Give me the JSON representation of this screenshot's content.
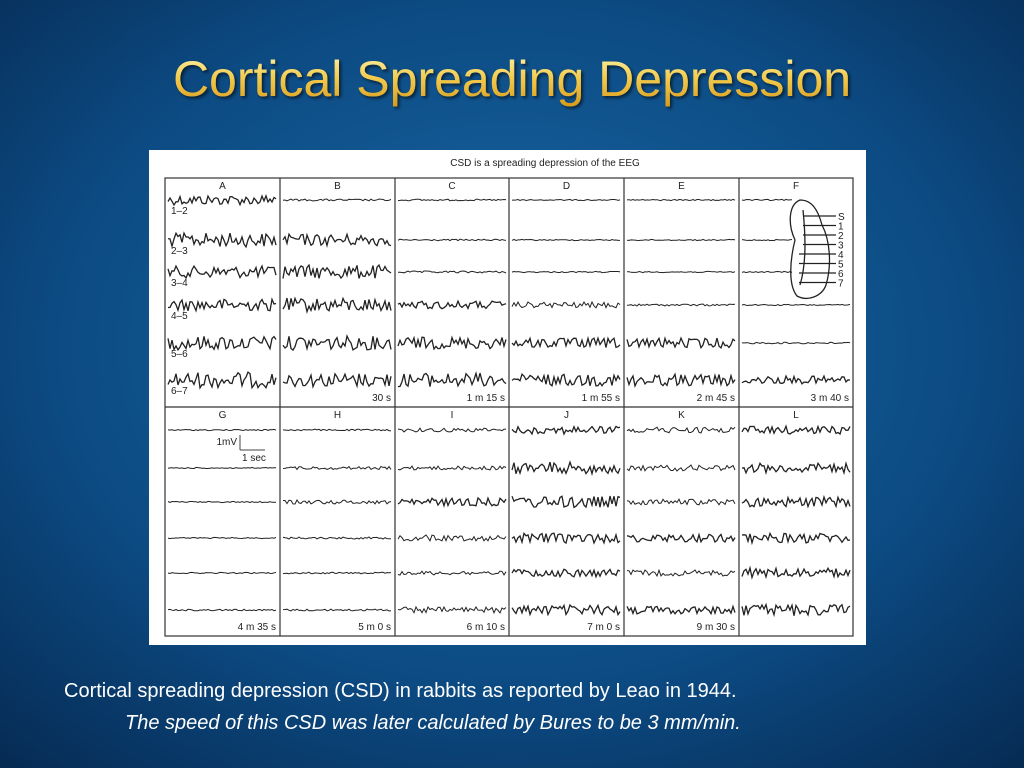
{
  "title": "Cortical Spreading Depression",
  "figure": {
    "title": "CSD is a spreading depression of the EEG",
    "panels": [
      {
        "letter": "A"
      },
      {
        "letter": "B",
        "time": "30 s"
      },
      {
        "letter": "C",
        "time": "1 m 15 s"
      },
      {
        "letter": "D",
        "time": "1 m 55 s"
      },
      {
        "letter": "E",
        "time": "2 m 45 s"
      },
      {
        "letter": "F",
        "time": "3 m 40 s"
      },
      {
        "letter": "G",
        "time": "4 m 35 s"
      },
      {
        "letter": "H",
        "time": "5 m 0 s"
      },
      {
        "letter": "I",
        "time": "6 m 10 s"
      },
      {
        "letter": "J",
        "time": "7 m 0 s"
      },
      {
        "letter": "K",
        "time": "9 m 30 s"
      },
      {
        "letter": "L"
      }
    ],
    "channels": [
      "1–2",
      "2–3",
      "3–4",
      "4–5",
      "5–6",
      "6–7"
    ],
    "scale": {
      "amplitude": "1mV",
      "time": "1 sec"
    },
    "electrodes": [
      "S",
      "1",
      "2",
      "3",
      "4",
      "5",
      "6",
      "7"
    ]
  },
  "caption": {
    "line1": "Cortical spreading depression (CSD) in rabbits as reported by Leao in 1944.",
    "line2": "The speed of this CSD was later calculated by Bures to be 3 mm/min."
  }
}
